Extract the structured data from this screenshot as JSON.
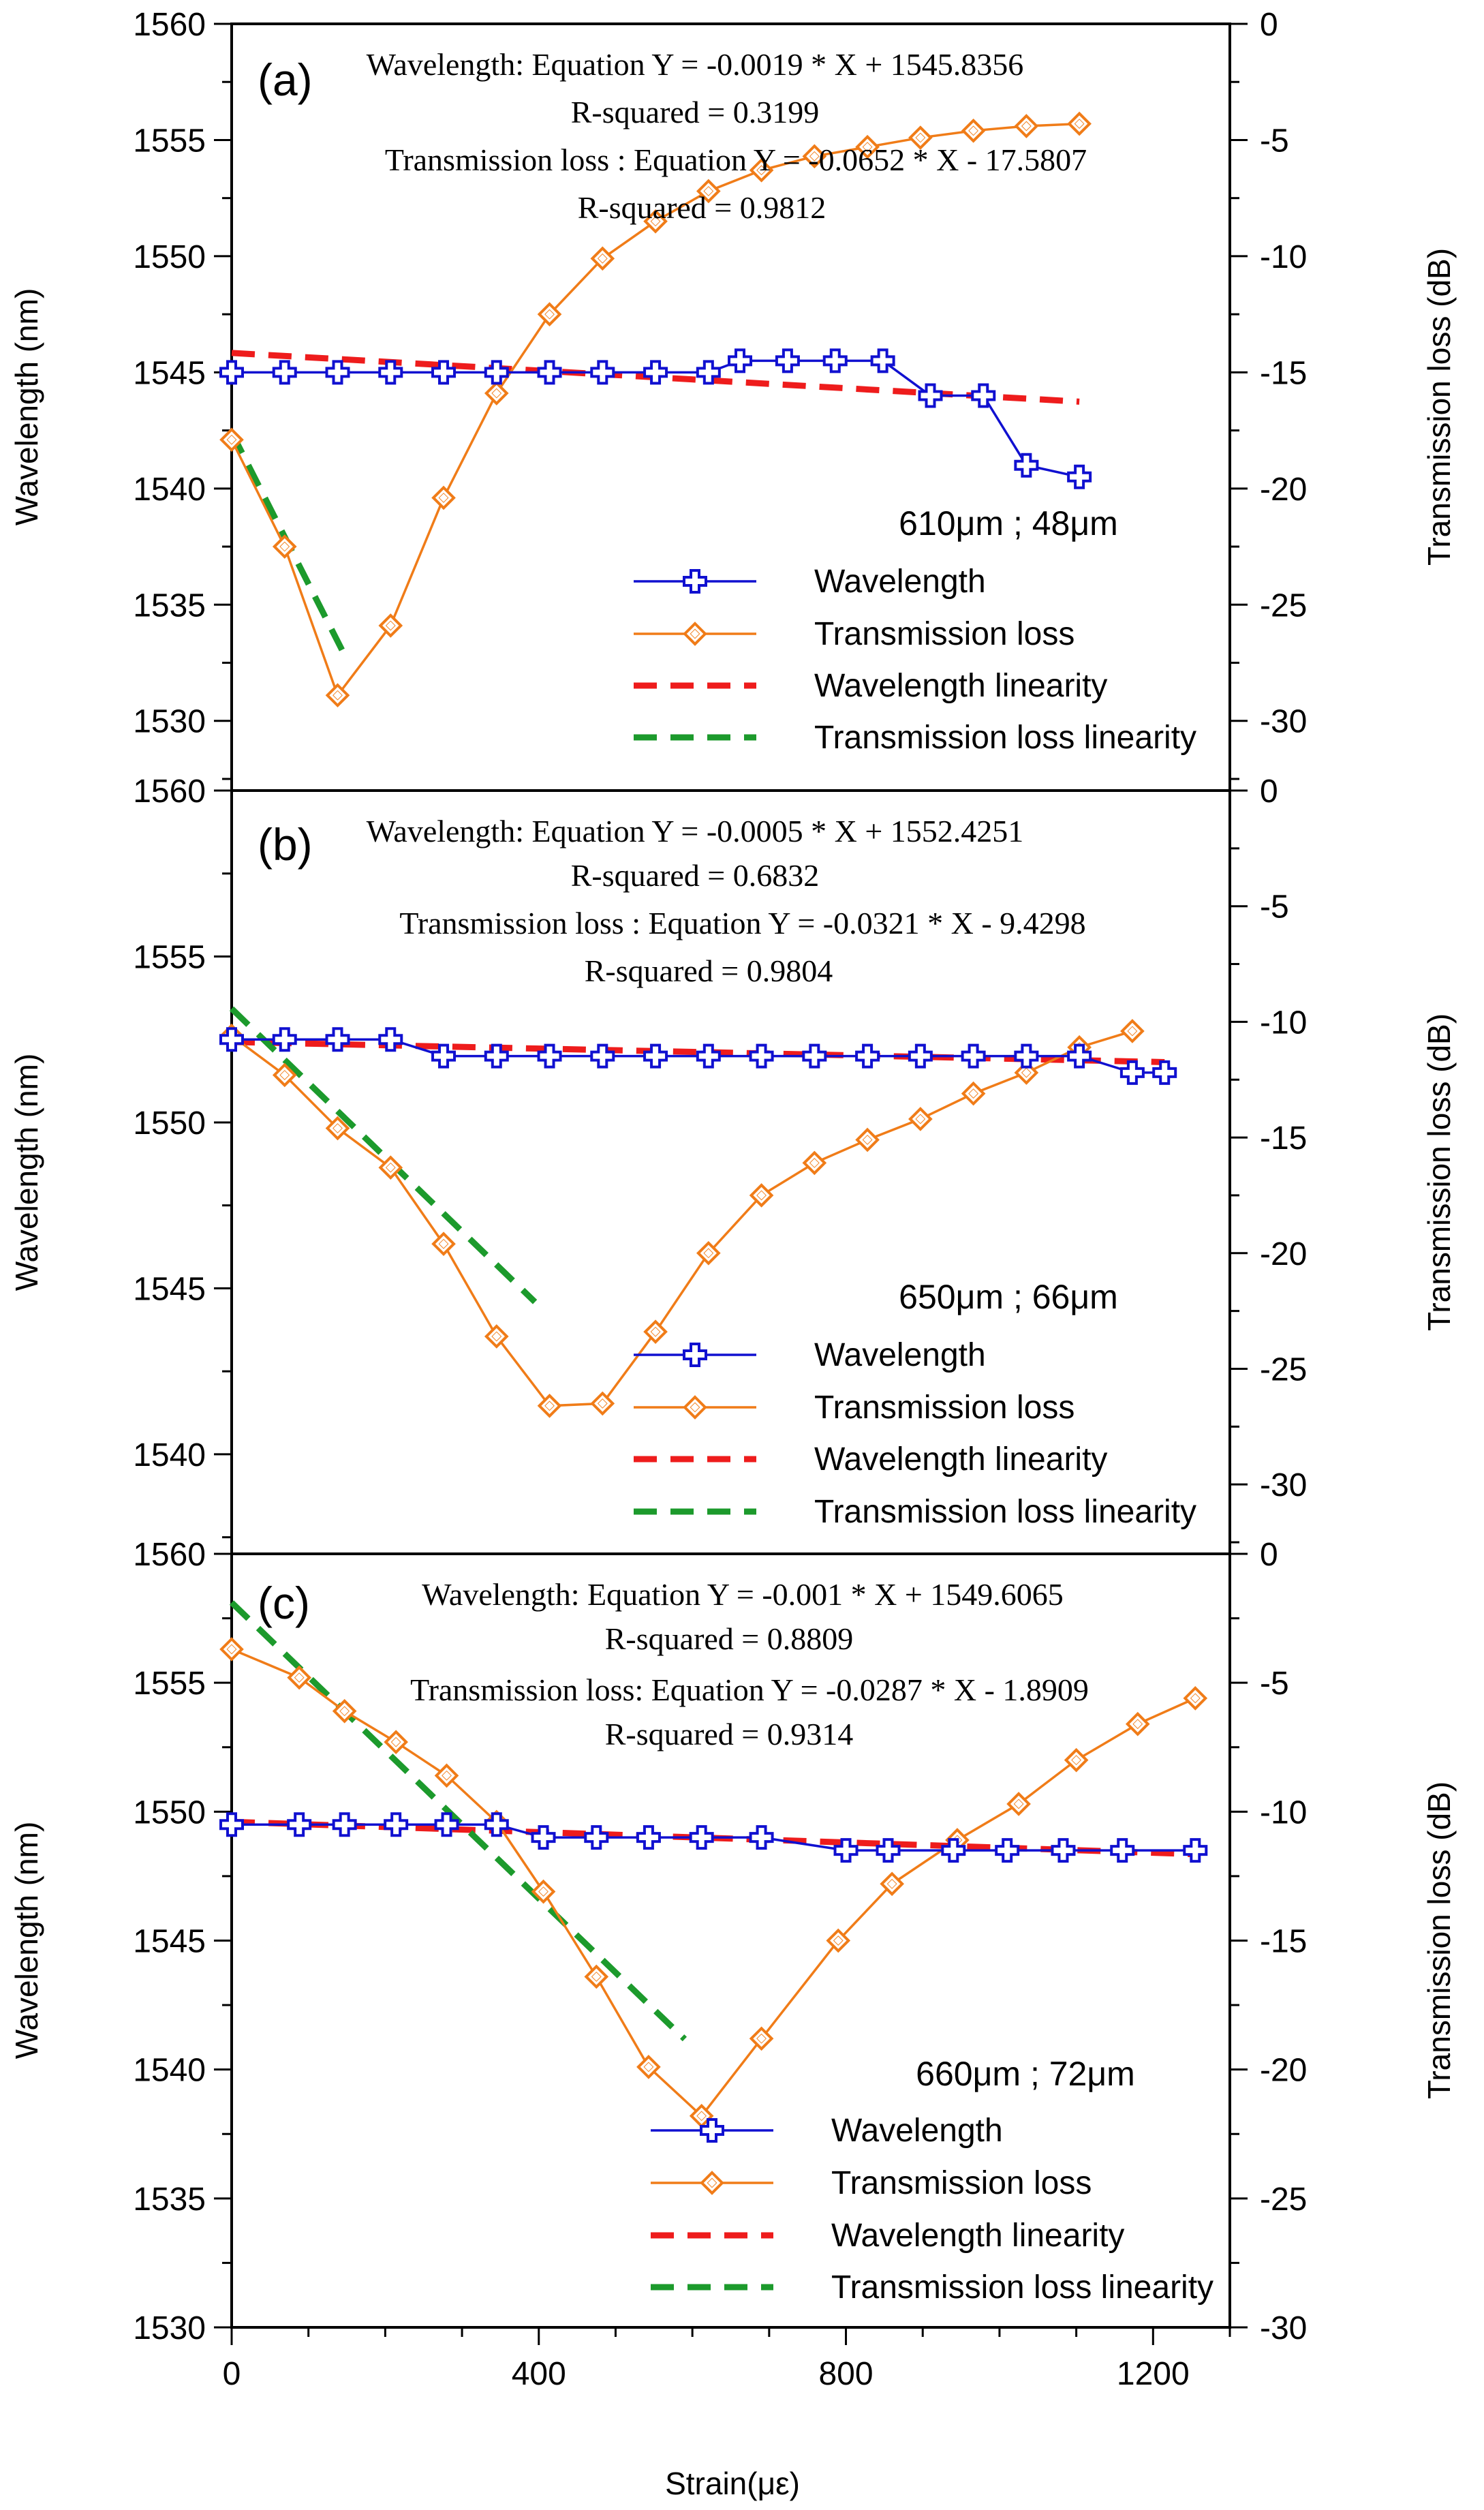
{
  "figure": {
    "xlabel": "Strain(με)",
    "x_ticks": [
      0,
      400,
      800,
      1200
    ],
    "xlim": [
      0,
      1300
    ]
  },
  "colors": {
    "wavelength": "#1010d0",
    "transmission": "#f07c18",
    "wavelength_fit": "#ee1c1c",
    "transmission_fit": "#1c9a2c"
  },
  "legend_labels": [
    "Wavelength",
    "Transmission loss",
    "Wavelength linearity",
    "Transmission loss linearity"
  ],
  "chart_data": [
    {
      "type": "line",
      "panel": "(a)",
      "geometry": "610μm ; 48μm",
      "equations": [
        "Wavelength: Equation Y = -0.0019 * X + 1545.8356",
        "R-squared = 0.3199",
        "Transmission loss : Equation Y =  -0.0652 * X - 17.5807",
        "R-squared = 0.9812"
      ],
      "ylabel": "Wavelength (nm)",
      "y2label": "Transmission loss  (dB)",
      "ylim": [
        1527,
        1560
      ],
      "y2lim": [
        -33,
        0
      ],
      "y_ticks": [
        1530,
        1535,
        1540,
        1545,
        1550,
        1555,
        1560
      ],
      "y2_ticks": [
        -30,
        -25,
        -20,
        -15,
        -10,
        -5,
        0
      ],
      "series": [
        {
          "name": "Wavelength",
          "axis": "left",
          "marker": "plus",
          "x": [
            0,
            69,
            138,
            207,
            276,
            345,
            414,
            483,
            552,
            621,
            662,
            724,
            786,
            848,
            910,
            979,
            1035,
            1104
          ],
          "y": [
            1545,
            1545,
            1545,
            1545,
            1545,
            1545,
            1545,
            1545,
            1545,
            1545,
            1545.5,
            1545.5,
            1545.5,
            1545.5,
            1544,
            1544,
            1541,
            1540.5
          ]
        },
        {
          "name": "Transmission loss",
          "axis": "right",
          "marker": "diamond",
          "x": [
            0,
            69,
            138,
            207,
            276,
            345,
            414,
            483,
            552,
            621,
            690,
            759,
            828,
            897,
            966,
            1035,
            1104
          ],
          "y": [
            -17.9,
            -22.5,
            -28.9,
            -25.9,
            -20.4,
            -15.9,
            -12.5,
            -10.1,
            -8.5,
            -7.2,
            -6.3,
            -5.7,
            -5.3,
            -4.9,
            -4.6,
            -4.4,
            -4.3
          ]
        },
        {
          "name": "Wavelength linearity",
          "axis": "left",
          "style": "dashed",
          "x": [
            0,
            1104
          ],
          "y": [
            1545.8356,
            1543.738
          ]
        },
        {
          "name": "Transmission loss linearity",
          "axis": "right",
          "style": "dashed",
          "x": [
            0,
            150
          ],
          "y": [
            -17.5807,
            -27.36
          ]
        }
      ]
    },
    {
      "type": "line",
      "panel": "(b)",
      "geometry": "650μm ; 66μm",
      "equations": [
        "Wavelength: Equation Y = -0.0005 * X + 1552.4251",
        "R-squared = 0.6832",
        "Transmission loss : Equation  Y = -0.0321 * X - 9.4298",
        "R-squared = 0.9804"
      ],
      "ylabel": "Wavelength (nm)",
      "y2label": "Transmission loss  (dB)",
      "ylim": [
        1537,
        1560
      ],
      "y2lim": [
        -33,
        0
      ],
      "y_ticks": [
        1540,
        1545,
        1550,
        1555,
        1560
      ],
      "y2_ticks": [
        -30,
        -25,
        -20,
        -15,
        -10,
        -5,
        0
      ],
      "series": [
        {
          "name": "Wavelength",
          "axis": "left",
          "marker": "plus",
          "x": [
            0,
            69,
            138,
            207,
            276,
            345,
            414,
            483,
            552,
            621,
            690,
            759,
            828,
            897,
            966,
            1035,
            1104,
            1173,
            1215
          ],
          "y": [
            1552.5,
            1552.5,
            1552.5,
            1552.5,
            1552,
            1552,
            1552,
            1552,
            1552,
            1552,
            1552,
            1552,
            1552,
            1552,
            1552,
            1552,
            1552,
            1551.5,
            1551.5
          ]
        },
        {
          "name": "Transmission loss",
          "axis": "right",
          "marker": "diamond",
          "x": [
            0,
            69,
            138,
            207,
            276,
            345,
            414,
            483,
            552,
            621,
            690,
            759,
            828,
            897,
            966,
            1035,
            1104,
            1173
          ],
          "y": [
            -10.6,
            -12.3,
            -14.6,
            -16.3,
            -19.6,
            -23.6,
            -26.6,
            -26.5,
            -23.4,
            -20,
            -17.5,
            -16.1,
            -15.1,
            -14.2,
            -13.1,
            -12.2,
            -11.1,
            -10.4
          ]
        },
        {
          "name": "Wavelength linearity",
          "axis": "left",
          "style": "dashed",
          "x": [
            0,
            1215
          ],
          "y": [
            1552.4251,
            1551.8176
          ]
        },
        {
          "name": "Transmission loss linearity",
          "axis": "right",
          "style": "dashed",
          "x": [
            0,
            395
          ],
          "y": [
            -9.4298,
            -22.11
          ]
        }
      ]
    },
    {
      "type": "line",
      "panel": "(c)",
      "geometry": "660μm ; 72μm",
      "equations": [
        "Wavelength: Equation Y = -0.001 * X + 1549.6065",
        "R-squared = 0.8809",
        "Transmission loss: Equation  Y = -0.0287 * X - 1.8909",
        "R-squared =  0.9314"
      ],
      "ylabel": "Wavelength (nm)",
      "y2label": "Transmission loss  (dB)",
      "ylim": [
        1530,
        1560
      ],
      "y2lim": [
        -30,
        0
      ],
      "y_ticks": [
        1530,
        1535,
        1540,
        1545,
        1550,
        1555,
        1560
      ],
      "y2_ticks": [
        -30,
        -25,
        -20,
        -15,
        -10,
        -5,
        0
      ],
      "series": [
        {
          "name": "Wavelength",
          "axis": "left",
          "marker": "plus",
          "x": [
            0,
            88,
            147,
            214,
            280,
            345,
            406,
            475,
            543,
            612,
            690,
            800,
            855,
            940,
            1010,
            1083,
            1160,
            1255
          ],
          "y": [
            1549.5,
            1549.5,
            1549.5,
            1549.5,
            1549.5,
            1549.5,
            1549,
            1549,
            1549,
            1549,
            1549,
            1548.5,
            1548.5,
            1548.5,
            1548.5,
            1548.5,
            1548.5,
            1548.5
          ]
        },
        {
          "name": "Transmission loss",
          "axis": "right",
          "marker": "diamond",
          "x": [
            0,
            88,
            147,
            214,
            280,
            345,
            406,
            475,
            543,
            612,
            690,
            790,
            860,
            945,
            1025,
            1100,
            1180,
            1255
          ],
          "y": [
            -3.7,
            -4.8,
            -6.1,
            -7.3,
            -8.6,
            -10.4,
            -13.1,
            -16.4,
            -19.9,
            -21.8,
            -18.8,
            -15,
            -12.8,
            -11.1,
            -9.7,
            -8,
            -6.6,
            -5.6
          ]
        },
        {
          "name": "Wavelength linearity",
          "axis": "left",
          "style": "dashed",
          "x": [
            0,
            1255
          ],
          "y": [
            1549.6065,
            1548.3515
          ]
        },
        {
          "name": "Transmission loss linearity",
          "axis": "right",
          "style": "dashed",
          "x": [
            0,
            590
          ],
          "y": [
            -1.8909,
            -18.82
          ]
        }
      ]
    }
  ]
}
